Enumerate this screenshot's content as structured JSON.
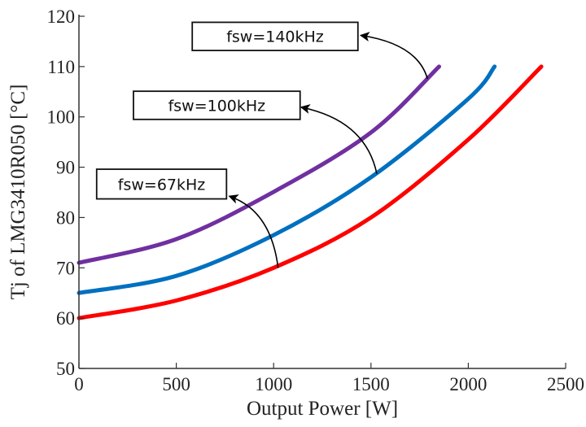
{
  "chart_data": {
    "type": "line",
    "title": "",
    "xlabel": "Output Power [W]",
    "ylabel": "Tj of LMG3410R050 [°C]",
    "xlim": [
      0,
      2500
    ],
    "ylim": [
      50,
      120
    ],
    "xticks": [
      0,
      500,
      1000,
      1500,
      2000,
      2500
    ],
    "yticks": [
      50,
      60,
      70,
      80,
      90,
      100,
      110,
      120
    ],
    "grid": false,
    "series": [
      {
        "color": "#7030a0",
        "x": [
          0,
          500,
          1000,
          1500,
          1850
        ],
        "y": [
          71,
          75.7,
          85.1,
          96.9,
          110
        ]
      },
      {
        "color": "#0070c0",
        "x": [
          0,
          500,
          1000,
          1500,
          2000,
          2135
        ],
        "y": [
          65,
          68.4,
          76.5,
          88,
          103.6,
          110
        ]
      },
      {
        "color": "#ff0000",
        "x": [
          0,
          500,
          1000,
          1500,
          2000,
          2375
        ],
        "y": [
          60,
          63.5,
          70,
          80,
          95.5,
          110
        ]
      }
    ],
    "annotations": [
      {
        "text": "fsw=67kHz",
        "box": [
          [
            91,
            89.6
          ],
          [
            758,
            83.7
          ]
        ],
        "arrow_from": [
          1023,
          70
        ],
        "arrow_to": [
          775,
          84.2
        ]
      },
      {
        "text": "fsw=100kHz",
        "box": [
          [
            280,
            105.1
          ],
          [
            1136,
            99.5
          ]
        ],
        "arrow_from": [
          1530,
          88.7
        ],
        "arrow_to": [
          1144,
          101.9
        ]
      },
      {
        "text": "fsw=140kHz",
        "box": [
          [
            582,
            118.8
          ],
          [
            1433,
            113.2
          ]
        ],
        "arrow_from": [
          1790,
          107.6
        ],
        "arrow_to": [
          1450,
          116.2
        ]
      }
    ]
  }
}
